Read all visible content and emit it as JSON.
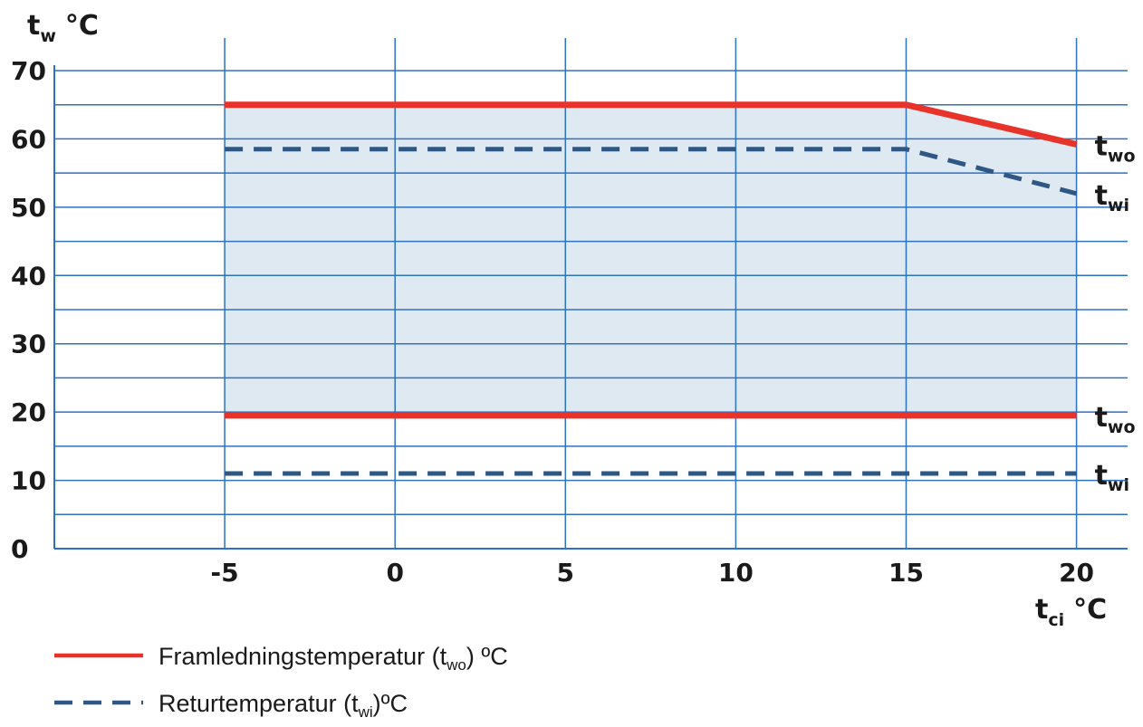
{
  "chart_data": {
    "type": "line",
    "title": "",
    "y_axis": {
      "label": "t",
      "label_sub": "w",
      "unit": "°C",
      "range": [
        0,
        70
      ],
      "tick_labels": [
        "0",
        "10",
        "20",
        "30",
        "40",
        "50",
        "60",
        "70"
      ],
      "tick_values": [
        0,
        10,
        20,
        30,
        40,
        50,
        60,
        70
      ],
      "gridline_step": 5
    },
    "x_axis": {
      "label": "t",
      "label_sub": "ci",
      "unit": "°C",
      "range": [
        -10,
        21.5
      ],
      "tick_labels": [
        "-5",
        "0",
        "5",
        "10",
        "15",
        "20"
      ],
      "tick_values": [
        -5,
        0,
        5,
        10,
        15,
        20
      ]
    },
    "grid": true,
    "operating_area": {
      "color": "#d9e5ef",
      "boundary_x": [
        -5,
        15,
        20
      ],
      "upper_y": [
        65,
        65,
        59.2
      ],
      "lower_y": [
        19.5,
        19.5,
        19.5
      ]
    },
    "series": [
      {
        "id": "two-upper",
        "style": "solid",
        "color": "#e8332a",
        "x": [
          -5,
          15,
          20
        ],
        "y": [
          65,
          65,
          59.2
        ],
        "end_label": "t",
        "end_label_sub": "wo"
      },
      {
        "id": "twi-upper",
        "style": "dashed",
        "color": "#2e5784",
        "x": [
          -5,
          15,
          20
        ],
        "y": [
          58.5,
          58.5,
          52
        ],
        "end_label": "t",
        "end_label_sub": "wi"
      },
      {
        "id": "two-lower",
        "style": "solid",
        "color": "#e8332a",
        "x": [
          -5,
          20
        ],
        "y": [
          19.5,
          19.5
        ],
        "end_label": "t",
        "end_label_sub": "wo"
      },
      {
        "id": "twi-lower",
        "style": "dashed",
        "color": "#2e5784",
        "x": [
          -5,
          20
        ],
        "y": [
          11,
          11
        ],
        "end_label": "t",
        "end_label_sub": "wi"
      }
    ],
    "legend": {
      "placement": "bottom-left",
      "entries": [
        {
          "style": "solid",
          "color": "#e8332a",
          "text_before": "Framledningstemperatur (t",
          "text_sub": "wo",
          "text_after": ") ºC"
        },
        {
          "style": "dashed",
          "color": "#2e5784",
          "text_before": "Returtemperatur (t",
          "text_sub": "wi",
          "text_after": ")ºC"
        }
      ]
    },
    "colors": {
      "grid": "#2e72c2",
      "axis_text": "#1a1a1a"
    }
  }
}
